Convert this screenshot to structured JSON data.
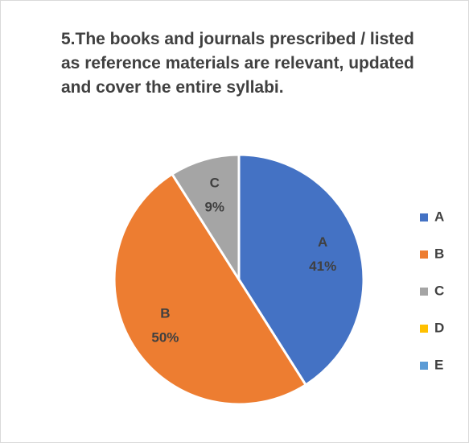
{
  "chart_data": {
    "type": "pie",
    "title": "5.The books and journals prescribed / listed as reference materials are relevant, updated and cover the entire syllabi.",
    "categories": [
      "A",
      "B",
      "C",
      "D",
      "E"
    ],
    "values": [
      41,
      50,
      9,
      0,
      0
    ],
    "value_labels": [
      "41%",
      "50%",
      "9%",
      null,
      null
    ],
    "colors": [
      "#4472c4",
      "#ed7d31",
      "#a5a5a5",
      "#ffc000",
      "#5b9bd5"
    ],
    "legend": "right"
  }
}
